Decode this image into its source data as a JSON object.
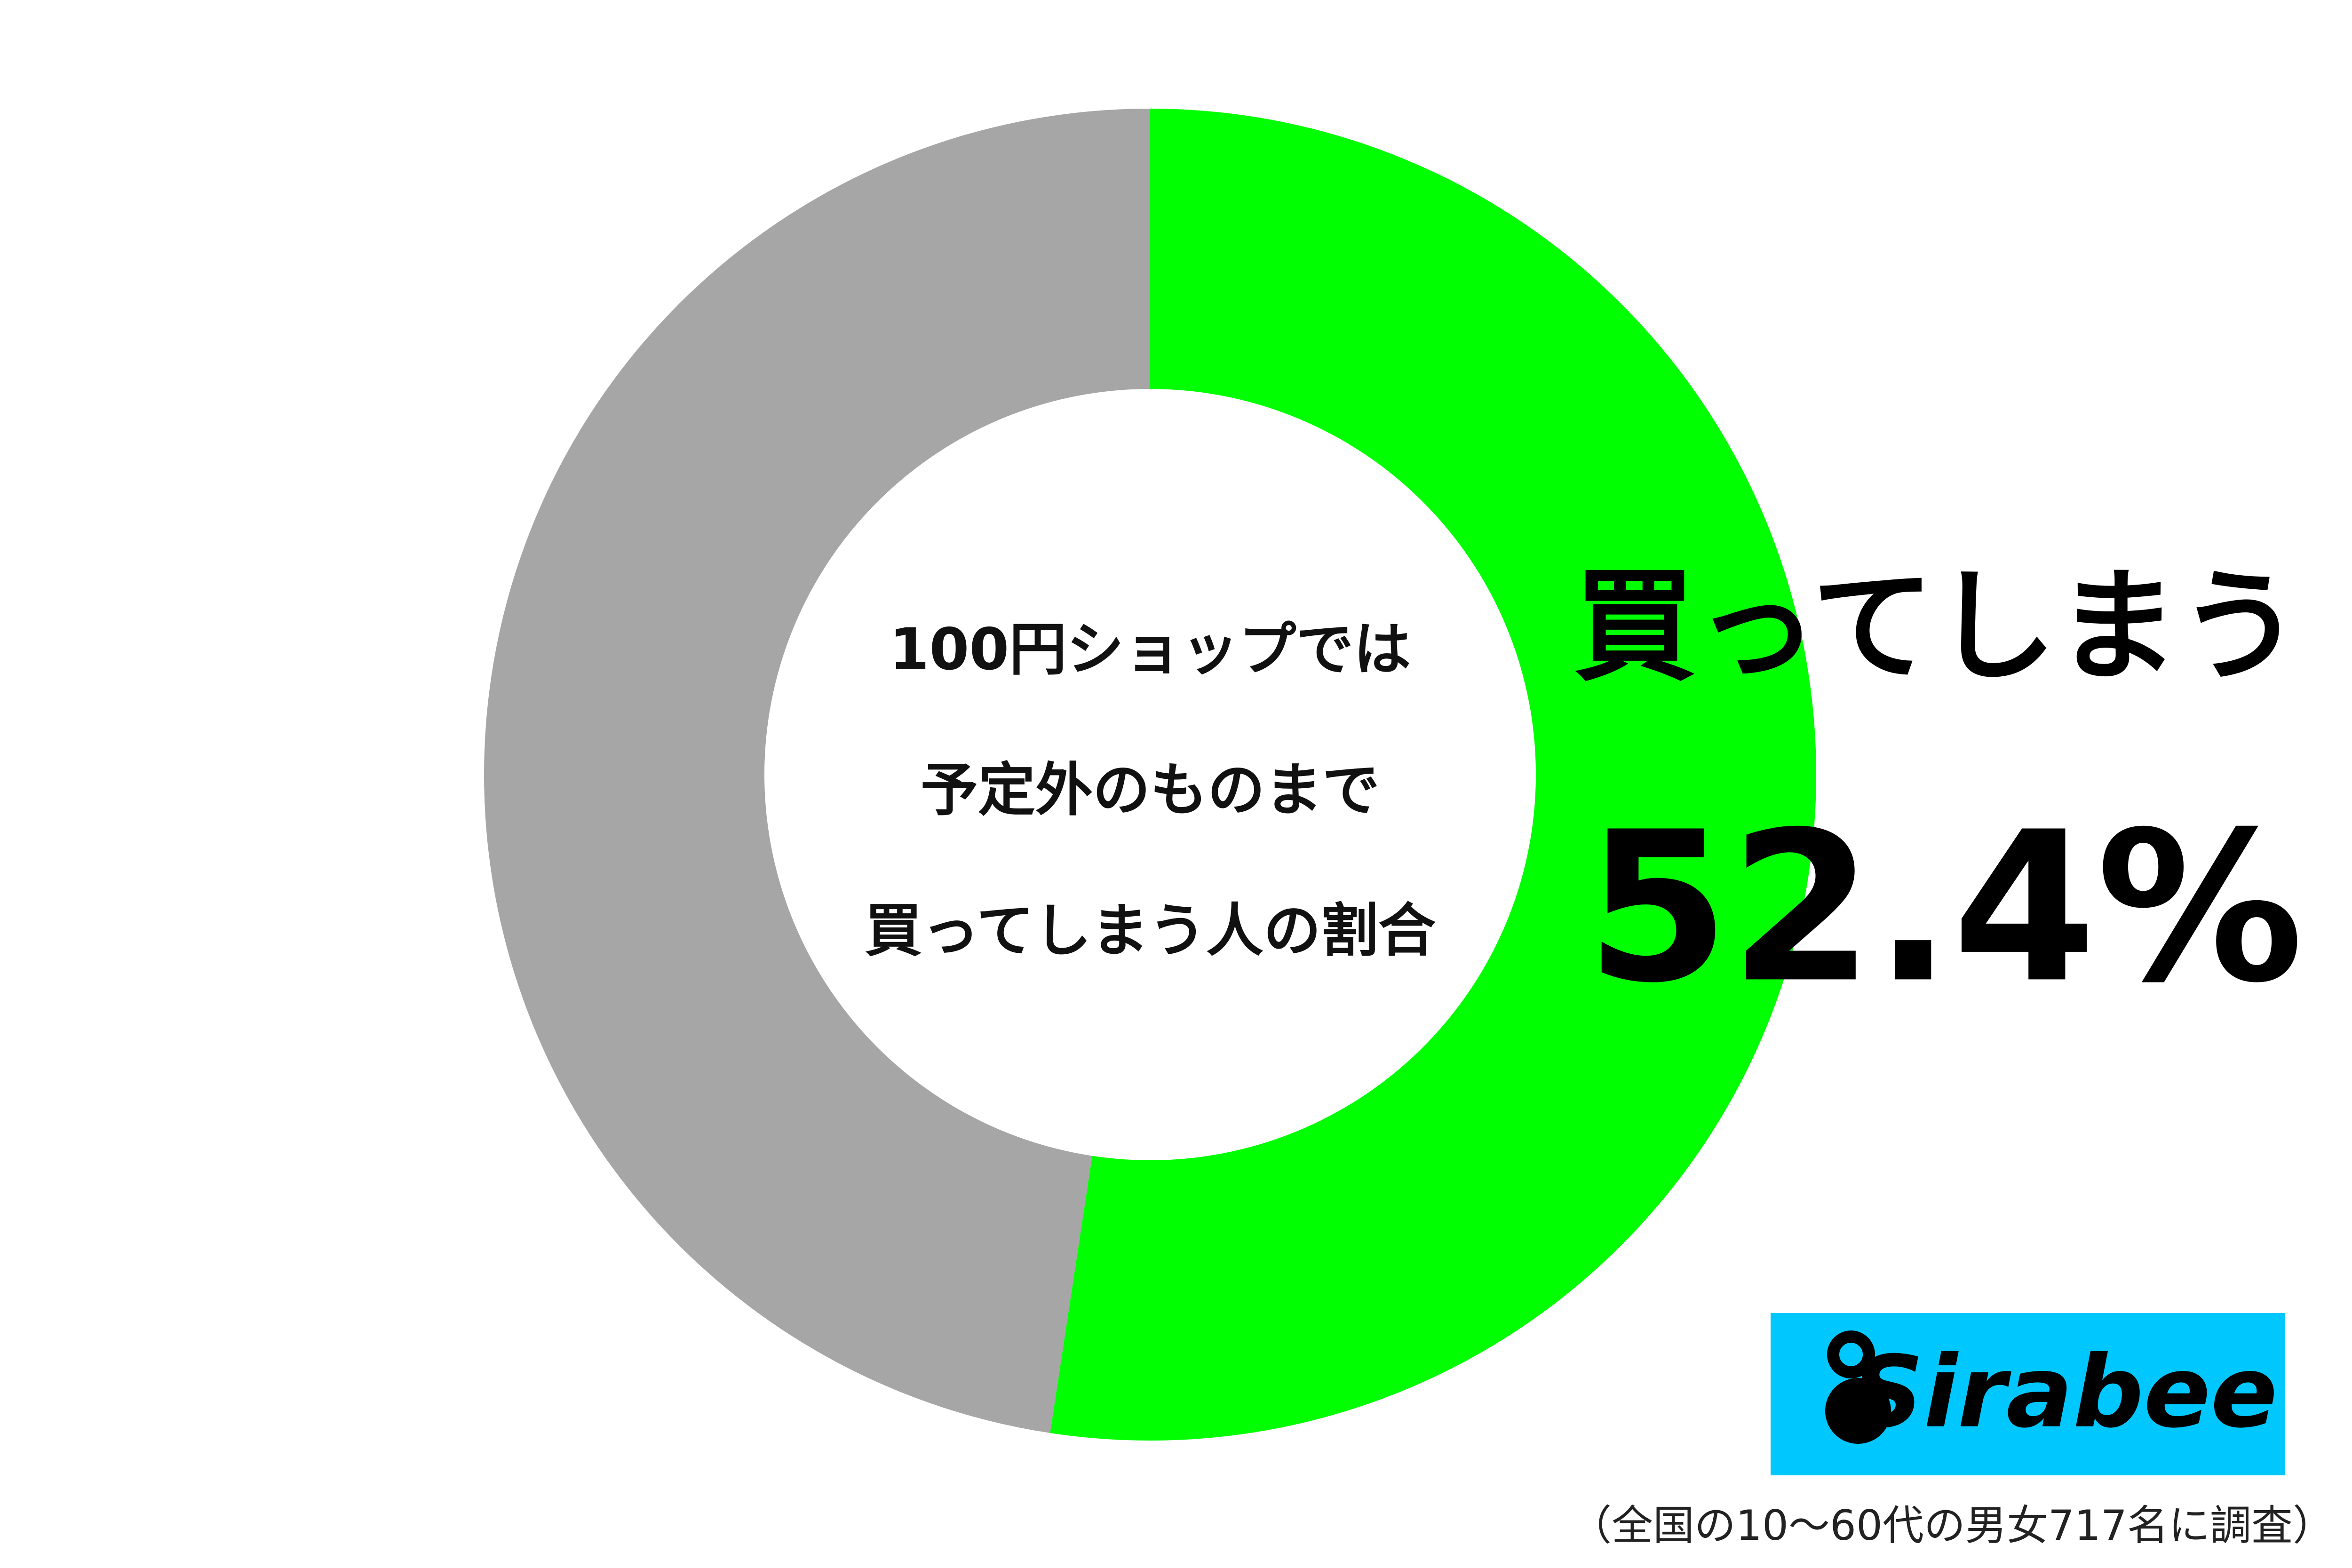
{
  "chart_data": {
    "type": "donut",
    "title": [
      "100円ショップでは",
      "予定外のものまで",
      "買ってしまう人の割合"
    ],
    "categories": [
      "買ってしまう",
      null
    ],
    "values": [
      52.4,
      47.6
    ],
    "value_labels": [
      "52.4%",
      null
    ],
    "colors": [
      "#00ff00",
      "#a6a6a6"
    ],
    "logo": "Sirabee",
    "note": "（全国の10〜60代の男女717名に調査）"
  }
}
